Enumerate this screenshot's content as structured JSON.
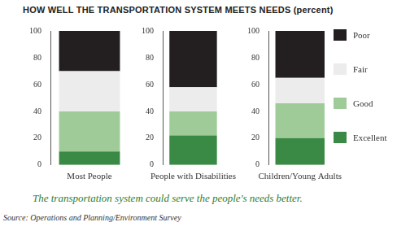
{
  "chart_data": {
    "type": "bar",
    "stacked": true,
    "title": "HOW WELL THE TRANSPORTATION SYSTEM MEETS NEEDS (percent)",
    "caption": "The transportation system could serve the people's needs better.",
    "source": "Source: Operations and Planning/Environment Survey",
    "categories": [
      "Most People",
      "People with Disabilities",
      "Children/Young Adults"
    ],
    "series": [
      {
        "name": "Excellent",
        "color": "#3a8a45",
        "values": [
          10,
          22,
          20
        ]
      },
      {
        "name": "Good",
        "color": "#9fcb99",
        "values": [
          30,
          18,
          26
        ]
      },
      {
        "name": "Fair",
        "color": "#ececec",
        "values": [
          30,
          18,
          19
        ]
      },
      {
        "name": "Poor",
        "color": "#231f20",
        "values": [
          30,
          42,
          35
        ]
      }
    ],
    "ylim": [
      0,
      100
    ],
    "yticks": [
      0,
      20,
      40,
      60,
      80,
      100
    ],
    "grid": false,
    "legend": "right"
  }
}
